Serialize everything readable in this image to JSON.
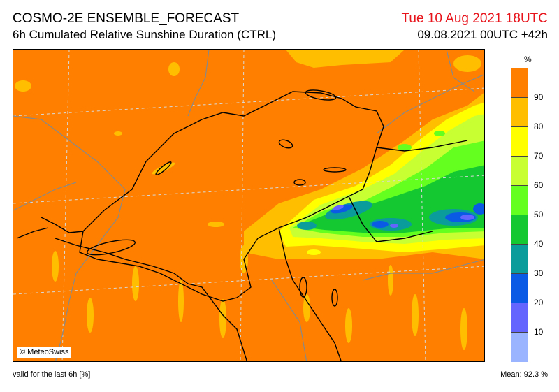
{
  "header": {
    "title": "COSMO-2E ENSEMBLE_FORECAST",
    "subtitle": "6h Cumulated Relative Sunshine Duration (CTRL)",
    "valid_time": "Tue 10 Aug 2021 18UTC",
    "run_info": "09.08.2021 00UTC +42h"
  },
  "map": {
    "copyright": "© MeteoSwiss",
    "background_color": "#ff8000"
  },
  "legend": {
    "unit": "%",
    "ticks": [
      "90",
      "80",
      "70",
      "60",
      "50",
      "40",
      "30",
      "20",
      "10"
    ],
    "colors": [
      "#ff8000",
      "#ffbf00",
      "#ffff00",
      "#c8ff32",
      "#64ff1e",
      "#14c832",
      "#0a9b9b",
      "#0a5ae6",
      "#6464ff",
      "#9bb4ff"
    ]
  },
  "footer": {
    "validity": "valid for the last 6h [%]",
    "mean": "Mean:  92.3 %"
  }
}
